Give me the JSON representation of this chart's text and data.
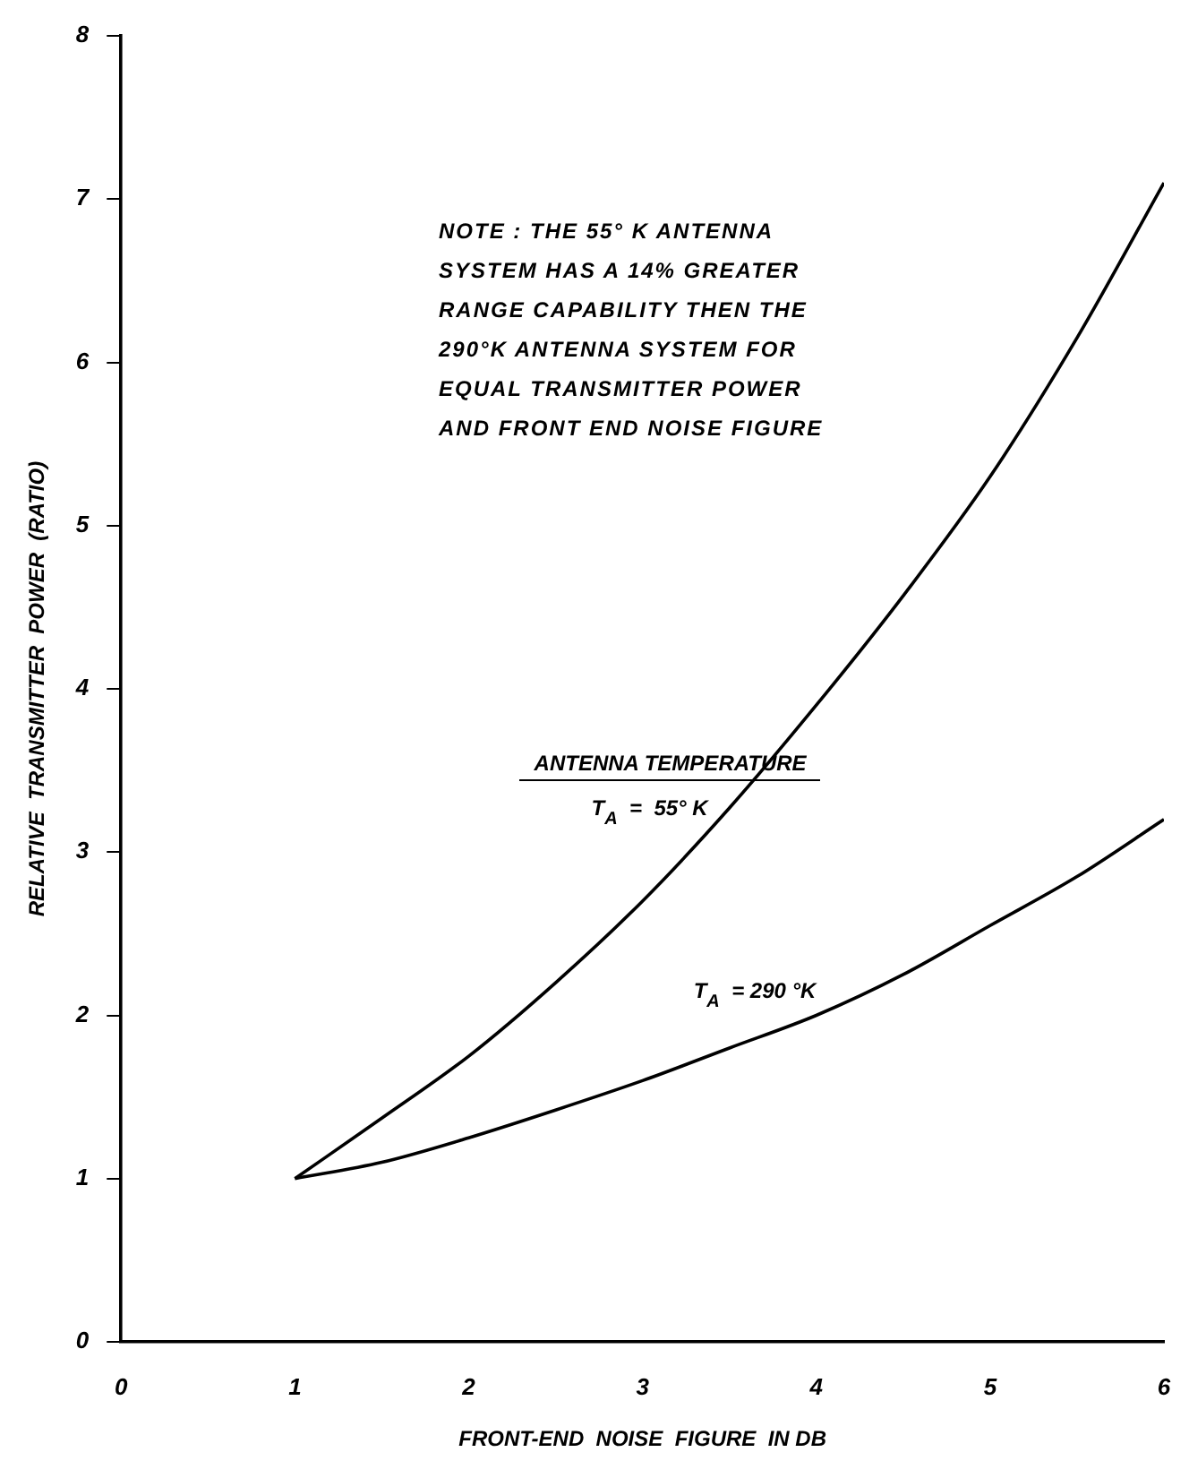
{
  "chart_data": {
    "type": "line",
    "xlabel": "FRONT-END  NOISE  FIGURE  IN DB",
    "ylabel": "RELATIVE  TRANSMITTER  POWER  (RATIO)",
    "legend_title": "ANTENNA TEMPERATURE",
    "x": [
      1,
      1.5,
      2,
      2.5,
      3,
      3.5,
      4,
      4.5,
      5,
      5.5,
      6
    ],
    "series": [
      {
        "name": "T$_{A}$  =  55° K",
        "color": "#000000",
        "values": [
          1,
          1.37,
          1.75,
          2.2,
          2.7,
          3.27,
          3.9,
          4.57,
          5.3,
          6.15,
          7.1
        ]
      },
      {
        "name": "T$_{A}$  = 290 °K",
        "color": "#000000",
        "values": [
          1,
          1.1,
          1.25,
          1.42,
          1.6,
          1.8,
          2.0,
          2.25,
          2.55,
          2.85,
          3.2
        ]
      }
    ],
    "xlim": [
      0,
      6
    ],
    "ylim": [
      0,
      8
    ],
    "xticks": [
      0,
      1,
      2,
      3,
      4,
      5,
      6
    ],
    "yticks": [
      0,
      1,
      2,
      3,
      4,
      5,
      6,
      7,
      8
    ],
    "grid": false,
    "legend": false,
    "marker": "none",
    "line_style": "solid",
    "annotations": [
      "NOTE : THE 55° K ANTENNA SYSTEM HAS A 14% GREATER RANGE CAPABILITY THEN THE 290°K ANTENNA SYSTEM FOR EQUAL TRANSMITTER POWER AND FRONT END NOISE FIGURE"
    ]
  }
}
